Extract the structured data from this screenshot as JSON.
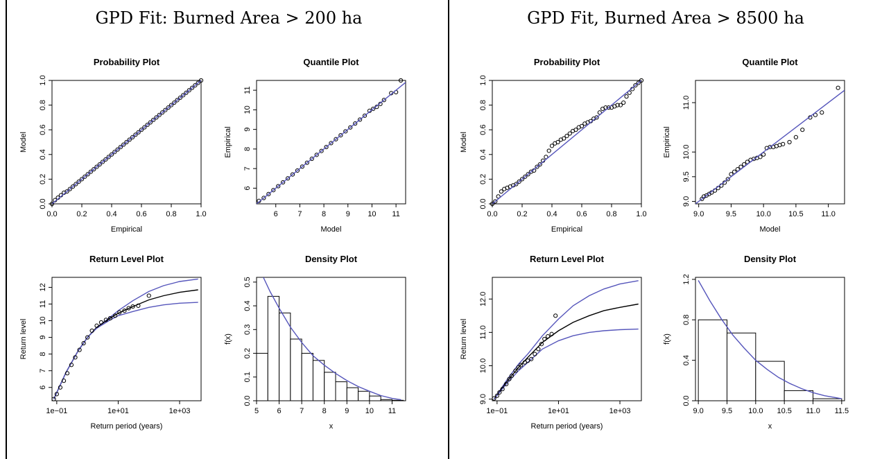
{
  "panels": [
    {
      "title": "GPD Fit: Burned Area > 200 ha"
    },
    {
      "title": "GPD Fit, Burned Area > 8500 ha"
    }
  ],
  "chart_data": [
    {
      "id": "p1",
      "type": "scatter",
      "title": "Probability Plot",
      "xlabel": "Empirical",
      "ylabel": "Model",
      "xlim": [
        0,
        1
      ],
      "ylim": [
        0,
        1
      ],
      "xticks": [
        0,
        0.2,
        0.4,
        0.6,
        0.8,
        1.0
      ],
      "xtick_labels": [
        "0.0",
        "0.2",
        "0.4",
        "0.6",
        "0.8",
        "1.0"
      ],
      "yticks": [
        0,
        0.2,
        0.4,
        0.6,
        0.8,
        1.0
      ],
      "ytick_labels": [
        "0.0",
        "0.2",
        "0.4",
        "0.6",
        "0.8",
        "1.0"
      ],
      "series": [
        {
          "kind": "points",
          "x": [
            0.0,
            0.02,
            0.04,
            0.06,
            0.08,
            0.1,
            0.12,
            0.14,
            0.16,
            0.18,
            0.2,
            0.22,
            0.24,
            0.26,
            0.28,
            0.3,
            0.32,
            0.34,
            0.36,
            0.38,
            0.4,
            0.42,
            0.44,
            0.46,
            0.48,
            0.5,
            0.52,
            0.54,
            0.56,
            0.58,
            0.6,
            0.62,
            0.64,
            0.66,
            0.68,
            0.7,
            0.72,
            0.74,
            0.76,
            0.78,
            0.8,
            0.82,
            0.84,
            0.86,
            0.88,
            0.9,
            0.92,
            0.94,
            0.96,
            0.98,
            1.0
          ],
          "y": [
            0.0,
            0.03,
            0.05,
            0.07,
            0.09,
            0.1,
            0.12,
            0.14,
            0.16,
            0.18,
            0.2,
            0.22,
            0.24,
            0.26,
            0.28,
            0.3,
            0.32,
            0.34,
            0.36,
            0.38,
            0.4,
            0.42,
            0.44,
            0.46,
            0.48,
            0.5,
            0.52,
            0.54,
            0.56,
            0.58,
            0.6,
            0.62,
            0.64,
            0.66,
            0.68,
            0.7,
            0.72,
            0.74,
            0.76,
            0.78,
            0.8,
            0.82,
            0.84,
            0.86,
            0.88,
            0.9,
            0.92,
            0.94,
            0.96,
            0.98,
            1.0
          ]
        },
        {
          "kind": "line",
          "color": "#5555bb",
          "x": [
            0,
            1
          ],
          "y": [
            0,
            1
          ]
        }
      ]
    },
    {
      "id": "p2",
      "type": "scatter",
      "title": "Quantile Plot",
      "xlabel": "Model",
      "ylabel": "Empirical",
      "xlim": [
        5.2,
        11.4
      ],
      "ylim": [
        5.2,
        11.5
      ],
      "xticks": [
        6,
        7,
        8,
        9,
        10,
        11
      ],
      "xtick_labels": [
        "6",
        "7",
        "8",
        "9",
        "10",
        "11"
      ],
      "yticks": [
        6,
        7,
        8,
        9,
        10,
        11
      ],
      "ytick_labels": [
        "6",
        "7",
        "8",
        "9",
        "10",
        "11"
      ],
      "series": [
        {
          "kind": "points",
          "x": [
            5.3,
            5.5,
            5.7,
            5.9,
            6.1,
            6.3,
            6.5,
            6.7,
            6.9,
            7.1,
            7.3,
            7.5,
            7.7,
            7.9,
            8.1,
            8.3,
            8.5,
            8.7,
            8.9,
            9.1,
            9.3,
            9.5,
            9.7,
            9.9,
            10.05,
            10.2,
            10.35,
            10.5,
            10.8,
            11.0,
            11.2
          ],
          "y": [
            5.35,
            5.5,
            5.7,
            5.9,
            6.1,
            6.3,
            6.5,
            6.7,
            6.9,
            7.1,
            7.3,
            7.5,
            7.7,
            7.9,
            8.1,
            8.3,
            8.5,
            8.7,
            8.9,
            9.1,
            9.3,
            9.5,
            9.7,
            9.95,
            10.05,
            10.15,
            10.3,
            10.5,
            10.85,
            10.9,
            11.5
          ]
        },
        {
          "kind": "line",
          "color": "#5555bb",
          "x": [
            5.2,
            11.4
          ],
          "y": [
            5.2,
            11.4
          ]
        }
      ]
    },
    {
      "id": "p3",
      "type": "line",
      "title": "Return Level Plot",
      "xlabel": "Return period (years)",
      "ylabel": "Return level",
      "xscale": "log",
      "xlim": [
        0.07,
        5000
      ],
      "ylim": [
        5.2,
        12.6
      ],
      "xticks": [
        0.1,
        10,
        1000
      ],
      "xtick_labels": [
        "1e−01",
        "1e+01",
        "1e+03"
      ],
      "yticks": [
        6,
        7,
        8,
        9,
        10,
        11,
        12
      ],
      "ytick_labels": [
        "6",
        "7",
        "8",
        "9",
        "10",
        "11",
        "12"
      ],
      "series": [
        {
          "kind": "line",
          "color": "#5555bb",
          "x": [
            0.08,
            0.2,
            0.5,
            1,
            2,
            5,
            10,
            30,
            100,
            300,
            1000,
            4000
          ],
          "y": [
            5.3,
            6.9,
            8.2,
            9.0,
            9.6,
            10.15,
            10.6,
            11.2,
            11.75,
            12.1,
            12.35,
            12.5
          ]
        },
        {
          "kind": "line",
          "color": "#000000",
          "x": [
            0.08,
            0.2,
            0.5,
            1,
            2,
            5,
            10,
            30,
            100,
            300,
            1000,
            4000
          ],
          "y": [
            5.3,
            6.9,
            8.2,
            9.0,
            9.6,
            10.1,
            10.45,
            10.85,
            11.25,
            11.5,
            11.7,
            11.85
          ]
        },
        {
          "kind": "line",
          "color": "#5555bb",
          "x": [
            0.08,
            0.2,
            0.5,
            1,
            2,
            5,
            10,
            30,
            100,
            300,
            1000,
            4000
          ],
          "y": [
            5.3,
            6.9,
            8.2,
            9.0,
            9.55,
            10.0,
            10.3,
            10.55,
            10.8,
            10.95,
            11.05,
            11.1
          ]
        },
        {
          "kind": "points",
          "x": [
            0.08,
            0.1,
            0.13,
            0.17,
            0.22,
            0.3,
            0.4,
            0.55,
            0.75,
            1.0,
            1.4,
            2.0,
            2.8,
            4.0,
            5.5,
            8,
            11,
            16,
            22,
            30,
            45,
            100
          ],
          "y": [
            5.3,
            5.6,
            6.0,
            6.4,
            6.85,
            7.35,
            7.8,
            8.25,
            8.65,
            9.0,
            9.4,
            9.7,
            9.9,
            10.05,
            10.15,
            10.3,
            10.5,
            10.6,
            10.75,
            10.85,
            10.9,
            11.5
          ]
        }
      ]
    },
    {
      "id": "p4",
      "type": "bar",
      "title": "Density Plot",
      "xlabel": "x",
      "ylabel": "f(x)",
      "xlim": [
        5,
        11.6
      ],
      "ylim": [
        0,
        0.52
      ],
      "xticks": [
        5,
        6,
        7,
        8,
        9,
        10,
        11
      ],
      "xtick_labels": [
        "5",
        "6",
        "7",
        "8",
        "9",
        "10",
        "11"
      ],
      "yticks": [
        0,
        0.1,
        0.2,
        0.3,
        0.4,
        0.5
      ],
      "ytick_labels": [
        "0.0",
        "0.1",
        "0.2",
        "0.3",
        "0.4",
        "0.5"
      ],
      "bins": [
        5.0,
        5.5,
        6.0,
        6.5,
        7.0,
        7.5,
        8.0,
        8.5,
        9.0,
        9.5,
        10.0,
        10.5,
        11.0,
        11.5
      ],
      "heights": [
        0.2,
        0.44,
        0.37,
        0.26,
        0.2,
        0.17,
        0.12,
        0.08,
        0.055,
        0.04,
        0.02,
        0.005,
        0.002
      ],
      "series": [
        {
          "kind": "line",
          "color": "#5555bb",
          "x": [
            5.3,
            5.6,
            6.0,
            6.5,
            7.0,
            7.5,
            8.0,
            8.5,
            9.0,
            9.5,
            10.0,
            10.5,
            11.0,
            11.4
          ],
          "y": [
            0.52,
            0.46,
            0.39,
            0.31,
            0.245,
            0.19,
            0.15,
            0.115,
            0.085,
            0.06,
            0.04,
            0.022,
            0.01,
            0.004
          ]
        }
      ]
    },
    {
      "id": "p5",
      "type": "scatter",
      "title": "Probability Plot",
      "xlabel": "Empirical",
      "ylabel": "Model",
      "xlim": [
        0,
        1
      ],
      "ylim": [
        0,
        1
      ],
      "xticks": [
        0,
        0.2,
        0.4,
        0.6,
        0.8,
        1.0
      ],
      "xtick_labels": [
        "0.0",
        "0.2",
        "0.4",
        "0.6",
        "0.8",
        "1.0"
      ],
      "yticks": [
        0,
        0.2,
        0.4,
        0.6,
        0.8,
        1.0
      ],
      "ytick_labels": [
        "0.0",
        "0.2",
        "0.4",
        "0.6",
        "0.8",
        "1.0"
      ],
      "series": [
        {
          "kind": "points",
          "x": [
            0.0,
            0.02,
            0.04,
            0.06,
            0.08,
            0.1,
            0.12,
            0.14,
            0.16,
            0.18,
            0.2,
            0.22,
            0.24,
            0.26,
            0.28,
            0.3,
            0.32,
            0.34,
            0.36,
            0.38,
            0.4,
            0.42,
            0.44,
            0.46,
            0.48,
            0.5,
            0.52,
            0.54,
            0.56,
            0.58,
            0.6,
            0.62,
            0.64,
            0.66,
            0.68,
            0.7,
            0.72,
            0.74,
            0.76,
            0.78,
            0.8,
            0.82,
            0.84,
            0.86,
            0.88,
            0.9,
            0.92,
            0.94,
            0.96,
            0.98,
            1.0
          ],
          "y": [
            0.0,
            0.02,
            0.06,
            0.1,
            0.12,
            0.13,
            0.14,
            0.15,
            0.16,
            0.18,
            0.2,
            0.22,
            0.24,
            0.26,
            0.27,
            0.3,
            0.32,
            0.35,
            0.38,
            0.43,
            0.47,
            0.49,
            0.5,
            0.52,
            0.53,
            0.55,
            0.57,
            0.59,
            0.6,
            0.62,
            0.63,
            0.65,
            0.66,
            0.67,
            0.69,
            0.7,
            0.74,
            0.77,
            0.78,
            0.78,
            0.78,
            0.79,
            0.8,
            0.8,
            0.82,
            0.87,
            0.9,
            0.93,
            0.96,
            0.98,
            1.0
          ]
        },
        {
          "kind": "line",
          "color": "#5555bb",
          "x": [
            0,
            1
          ],
          "y": [
            0,
            1
          ]
        }
      ]
    },
    {
      "id": "p6",
      "type": "scatter",
      "title": "Quantile Plot",
      "xlabel": "Model",
      "ylabel": "Empirical",
      "xlim": [
        8.95,
        11.25
      ],
      "ylim": [
        8.95,
        11.45
      ],
      "xticks": [
        9.0,
        9.5,
        10.0,
        10.5,
        11.0
      ],
      "xtick_labels": [
        "9.0",
        "9.5",
        "10.0",
        "10.5",
        "11.0"
      ],
      "yticks": [
        9.0,
        9.5,
        10.0,
        11.0
      ],
      "ytick_labels": [
        "9.0",
        "9.5",
        "10.0",
        "11.0"
      ],
      "series": [
        {
          "kind": "points",
          "x": [
            9.05,
            9.08,
            9.12,
            9.16,
            9.2,
            9.25,
            9.3,
            9.35,
            9.4,
            9.45,
            9.5,
            9.55,
            9.6,
            9.65,
            9.7,
            9.75,
            9.8,
            9.85,
            9.9,
            9.95,
            10.0,
            10.05,
            10.1,
            10.15,
            10.2,
            10.25,
            10.3,
            10.4,
            10.5,
            10.6,
            10.72,
            10.8,
            10.9,
            11.15
          ],
          "y": [
            9.05,
            9.1,
            9.12,
            9.15,
            9.18,
            9.22,
            9.27,
            9.32,
            9.38,
            9.45,
            9.55,
            9.6,
            9.65,
            9.7,
            9.75,
            9.8,
            9.84,
            9.86,
            9.88,
            9.9,
            9.95,
            10.08,
            10.1,
            10.1,
            10.12,
            10.14,
            10.16,
            10.2,
            10.3,
            10.45,
            10.7,
            10.75,
            10.8,
            11.3
          ]
        },
        {
          "kind": "line",
          "color": "#5555bb",
          "x": [
            8.95,
            11.25
          ],
          "y": [
            8.95,
            11.25
          ]
        }
      ]
    },
    {
      "id": "p7",
      "type": "line",
      "title": "Return Level Plot",
      "xlabel": "Return period (years)",
      "ylabel": "Return level",
      "xscale": "log",
      "xlim": [
        0.07,
        5000
      ],
      "ylim": [
        8.95,
        12.65
      ],
      "xticks": [
        0.1,
        10,
        1000
      ],
      "xtick_labels": [
        "1e−01",
        "1e+01",
        "1e+03"
      ],
      "yticks": [
        9.0,
        10.0,
        11.0,
        12.0
      ],
      "ytick_labels": [
        "9.0",
        "10.0",
        "11.0",
        "12.0"
      ],
      "series": [
        {
          "kind": "line",
          "color": "#5555bb",
          "x": [
            0.08,
            0.2,
            0.5,
            1,
            3,
            10,
            30,
            100,
            300,
            1000,
            4000
          ],
          "y": [
            9.0,
            9.55,
            10.05,
            10.35,
            10.9,
            11.4,
            11.8,
            12.1,
            12.3,
            12.45,
            12.55
          ]
        },
        {
          "kind": "line",
          "color": "#000000",
          "x": [
            0.08,
            0.2,
            0.5,
            1,
            3,
            10,
            30,
            100,
            300,
            1000,
            4000
          ],
          "y": [
            9.0,
            9.5,
            9.95,
            10.25,
            10.7,
            11.05,
            11.3,
            11.5,
            11.65,
            11.75,
            11.85
          ]
        },
        {
          "kind": "line",
          "color": "#5555bb",
          "x": [
            0.08,
            0.2,
            0.5,
            1,
            3,
            10,
            30,
            100,
            300,
            1000,
            4000
          ],
          "y": [
            9.0,
            9.45,
            9.85,
            10.1,
            10.5,
            10.75,
            10.9,
            11.0,
            11.05,
            11.08,
            11.1
          ]
        },
        {
          "kind": "points",
          "x": [
            0.08,
            0.1,
            0.12,
            0.15,
            0.2,
            0.25,
            0.3,
            0.4,
            0.5,
            0.6,
            0.8,
            1.0,
            1.3,
            1.7,
            2.2,
            2.8,
            3.5,
            4.5,
            6,
            8
          ],
          "y": [
            9.02,
            9.1,
            9.2,
            9.3,
            9.45,
            9.6,
            9.7,
            9.85,
            9.95,
            10.02,
            10.1,
            10.15,
            10.2,
            10.35,
            10.5,
            10.65,
            10.8,
            10.88,
            10.95,
            11.5
          ]
        }
      ]
    },
    {
      "id": "p8",
      "type": "bar",
      "title": "Density Plot",
      "xlabel": "x",
      "ylabel": "f(x)",
      "xlim": [
        8.95,
        11.55
      ],
      "ylim": [
        0,
        1.22
      ],
      "xticks": [
        9.0,
        9.5,
        10.0,
        10.5,
        11.0,
        11.5
      ],
      "xtick_labels": [
        "9.0",
        "9.5",
        "10.0",
        "10.5",
        "11.0",
        "11.5"
      ],
      "yticks": [
        0,
        0.4,
        0.8,
        1.2
      ],
      "ytick_labels": [
        "0.0",
        "0.4",
        "0.8",
        "1.2"
      ],
      "bins": [
        9.0,
        9.5,
        10.0,
        10.5,
        11.0,
        11.5
      ],
      "heights": [
        0.8,
        0.67,
        0.39,
        0.1,
        0.02
      ],
      "series": [
        {
          "kind": "line",
          "color": "#5555bb",
          "x": [
            9.0,
            9.2,
            9.4,
            9.6,
            9.8,
            10.0,
            10.2,
            10.4,
            10.6,
            10.8,
            11.0,
            11.2,
            11.4,
            11.5
          ],
          "y": [
            1.19,
            0.99,
            0.81,
            0.65,
            0.52,
            0.4,
            0.31,
            0.23,
            0.17,
            0.12,
            0.08,
            0.05,
            0.03,
            0.02
          ]
        }
      ]
    }
  ]
}
